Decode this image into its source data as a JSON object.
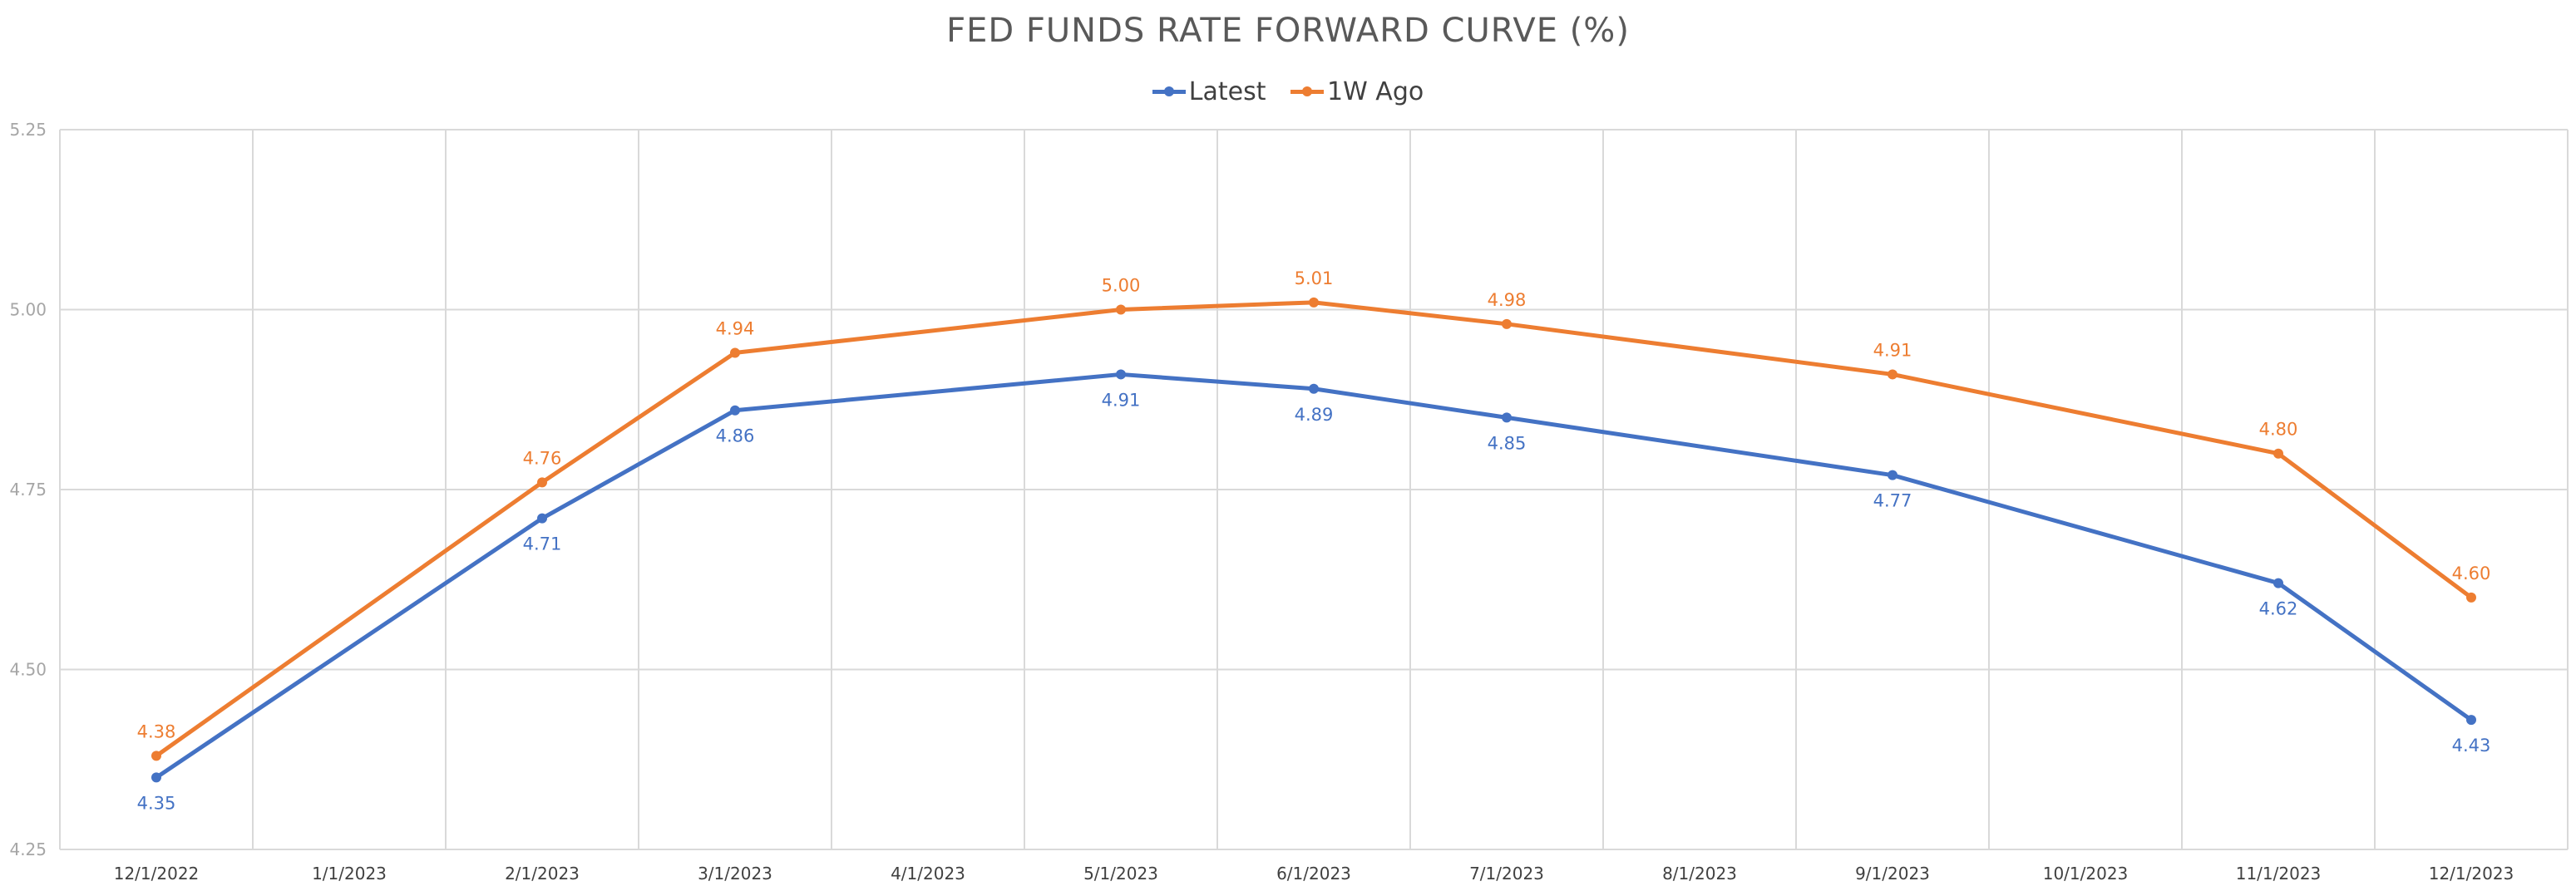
{
  "colors": {
    "latest": "#4472C4",
    "ago": "#ED7D31",
    "grid": "#D9D9D9",
    "axis_text": "#A6A6A6",
    "xtick_text": "#404040"
  },
  "chart_data": {
    "type": "line",
    "title": "FED FUNDS RATE FORWARD CURVE (%)",
    "categories": [
      "12/1/2022",
      "1/1/2023",
      "2/1/2023",
      "3/1/2023",
      "4/1/2023",
      "5/1/2023",
      "6/1/2023",
      "7/1/2023",
      "8/1/2023",
      "9/1/2023",
      "10/1/2023",
      "11/1/2023",
      "12/1/2023"
    ],
    "series": [
      {
        "name": "Latest",
        "color": "#4472C4",
        "points": [
          {
            "x": "12/1/2022",
            "y": 4.35,
            "label": "4.35"
          },
          {
            "x": "2/1/2023",
            "y": 4.71,
            "label": "4.71"
          },
          {
            "x": "3/1/2023",
            "y": 4.86,
            "label": "4.86"
          },
          {
            "x": "5/1/2023",
            "y": 4.91,
            "label": "4.91"
          },
          {
            "x": "6/1/2023",
            "y": 4.89,
            "label": "4.89"
          },
          {
            "x": "7/1/2023",
            "y": 4.85,
            "label": "4.85"
          },
          {
            "x": "9/1/2023",
            "y": 4.77,
            "label": "4.77"
          },
          {
            "x": "11/1/2023",
            "y": 4.62,
            "label": "4.62"
          },
          {
            "x": "12/1/2023",
            "y": 4.43,
            "label": "4.43"
          }
        ]
      },
      {
        "name": "1W Ago",
        "color": "#ED7D31",
        "points": [
          {
            "x": "12/1/2022",
            "y": 4.38,
            "label": "4.38"
          },
          {
            "x": "2/1/2023",
            "y": 4.76,
            "label": "4.76"
          },
          {
            "x": "3/1/2023",
            "y": 4.94,
            "label": "4.94"
          },
          {
            "x": "5/1/2023",
            "y": 5.0,
            "label": "5.00"
          },
          {
            "x": "6/1/2023",
            "y": 5.01,
            "label": "5.01"
          },
          {
            "x": "7/1/2023",
            "y": 4.98,
            "label": "4.98"
          },
          {
            "x": "9/1/2023",
            "y": 4.91,
            "label": "4.91"
          },
          {
            "x": "11/1/2023",
            "y": 4.8,
            "label": "4.80"
          },
          {
            "x": "12/1/2023",
            "y": 4.6,
            "label": "4.60"
          }
        ]
      }
    ],
    "y_ticks": [
      {
        "value": 4.25,
        "label": "4.25"
      },
      {
        "value": 4.5,
        "label": "4.50"
      },
      {
        "value": 4.75,
        "label": "4.75"
      },
      {
        "value": 5.0,
        "label": "5.00"
      },
      {
        "value": 5.25,
        "label": "5.25"
      }
    ],
    "ylim": [
      4.25,
      5.25
    ],
    "grid": true,
    "legend_position": "top"
  }
}
